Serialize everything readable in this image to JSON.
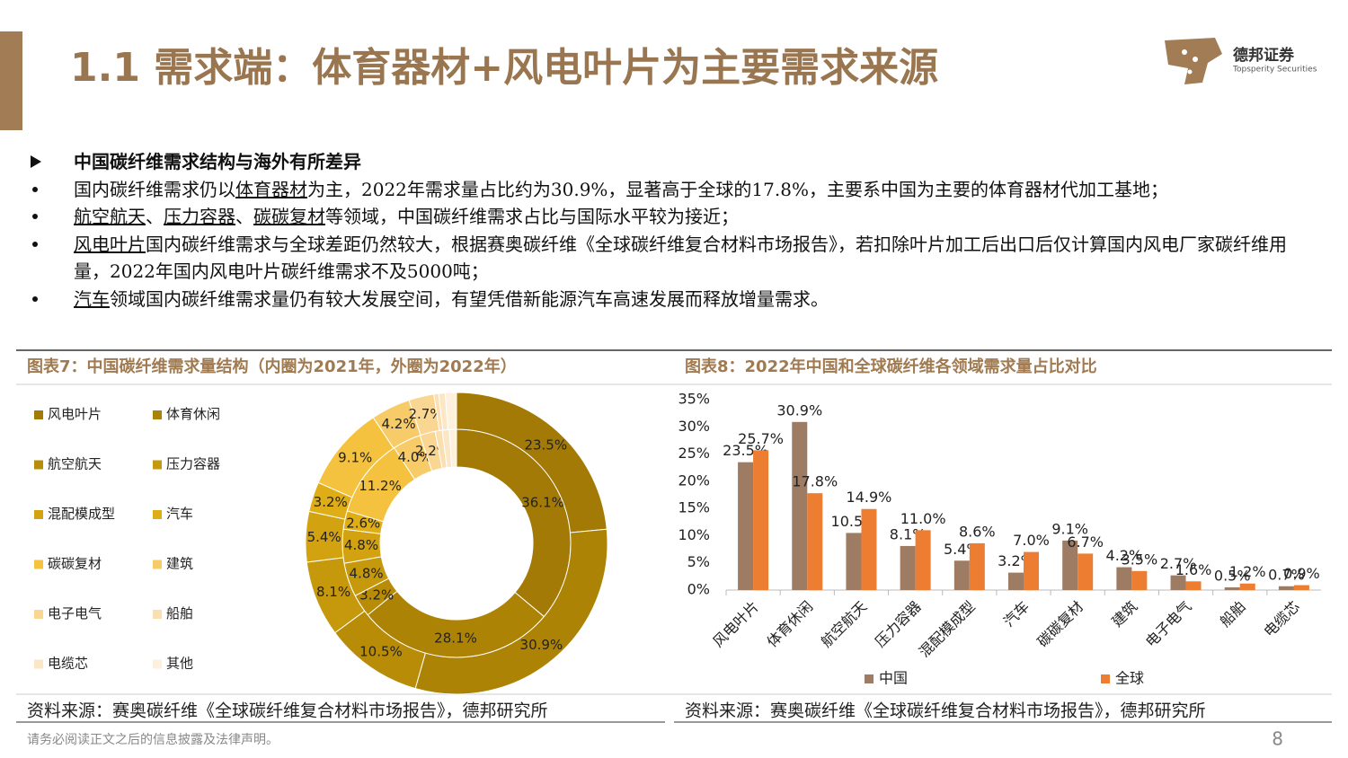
{
  "header": {
    "title": "1.1 需求端：体育器材+风电叶片为主要需求来源",
    "logo_name": "德邦证券",
    "logo_subtitle": "Topsperity Securities"
  },
  "section_heading": "中国碳纤维需求结构与海外有所差异",
  "bullets": [
    {
      "segments": [
        {
          "text": "国内碳纤维需求仍以"
        },
        {
          "text": "体育器材",
          "underline": true
        },
        {
          "text": "为主，2022年需求量占比约为30.9%，显著高于全球的17.8%，主要系中国为主要的体育器材代加工基地；"
        }
      ]
    },
    {
      "segments": [
        {
          "text": "航空航天",
          "underline": true
        },
        {
          "text": "、"
        },
        {
          "text": "压力容器",
          "underline": true
        },
        {
          "text": "、"
        },
        {
          "text": "碳碳复材",
          "underline": true
        },
        {
          "text": "等领域，中国碳纤维需求占比与国际水平较为接近；"
        }
      ]
    },
    {
      "segments": [
        {
          "text": "风电叶片",
          "underline": true
        },
        {
          "text": "国内碳纤维需求与全球差距仍然较大，根据赛奥碳纤维《全球碳纤维复合材料市场报告》，若扣除叶片加工后出口后仅计算国内风电厂家碳纤维用量，2022年国内风电叶片碳纤维需求不及5000吨；"
        }
      ]
    },
    {
      "segments": [
        {
          "text": "汽车",
          "underline": true
        },
        {
          "text": "领域国内碳纤维需求量仍有较大发展空间，有望凭借新能源汽车高速发展而释放增量需求。"
        }
      ]
    }
  ],
  "chart_data": [
    {
      "type": "donut",
      "title": "图表7：中国碳纤维需求量结构（内圈为2021年，外圈为2022年）",
      "categories": [
        "风电叶片",
        "体育休闲",
        "航空航天",
        "压力容器",
        "混配模成型",
        "汽车",
        "碳碳复材",
        "建筑",
        "电子电气",
        "船舶",
        "电缆芯",
        "其他"
      ],
      "colors": [
        "#a37a05",
        "#ad8306",
        "#b98c08",
        "#c6980b",
        "#d2a210",
        "#dfad16",
        "#f5c23f",
        "#f7cc68",
        "#f9d692",
        "#fadfb0",
        "#fbe7c6",
        "#fdf0dd"
      ],
      "series": [
        {
          "values": [
            36.1,
            28.1,
            3.2,
            4.8,
            4.8,
            2.6,
            11.2,
            4.0,
            2.2,
            1.0,
            1.0,
            1.0
          ],
          "value_labels": [
            "36.1%",
            "28.1%",
            "3.2%",
            "4.8%",
            "4.8%",
            "2.6%",
            "11.2%",
            "4.0%",
            "2.2%",
            null,
            null,
            null
          ]
        },
        {
          "values": [
            23.5,
            30.9,
            10.5,
            8.1,
            5.4,
            3.2,
            9.1,
            4.2,
            2.7,
            0.5,
            0.7,
            1.2
          ],
          "value_labels": [
            "23.5%",
            "30.9%",
            "10.5%",
            "8.1%",
            "5.4%",
            "3.2%",
            "9.1%",
            "4.2%",
            "2.7%",
            null,
            null,
            null
          ]
        }
      ],
      "source": "资料来源：赛奥碳纤维《全球碳纤维复合材料市场报告》，德邦研究所"
    },
    {
      "type": "bar",
      "title": "图表8：2022年中国和全球碳纤维各领域需求量占比对比",
      "categories": [
        "风电叶片",
        "体育休闲",
        "航空航天",
        "压力容器",
        "混配模成型",
        "汽车",
        "碳碳复材",
        "建筑",
        "电子电气",
        "船舶",
        "电缆芯"
      ],
      "series": [
        {
          "name": "中国",
          "color": "#9e7b63",
          "values": [
            23.5,
            30.9,
            10.5,
            8.1,
            5.4,
            3.2,
            9.1,
            4.2,
            2.7,
            0.5,
            0.7
          ],
          "value_labels": [
            "23.5%",
            "30.9%",
            "10.5%",
            "8.1%",
            "5.4%",
            "3.2%",
            "9.1%",
            "4.2%",
            "2.7%",
            "0.5%",
            "0.7%"
          ]
        },
        {
          "name": "全球",
          "color": "#ed7d31",
          "values": [
            25.7,
            17.8,
            14.9,
            11.0,
            8.6,
            7.0,
            6.7,
            3.5,
            1.6,
            1.2,
            0.9
          ],
          "value_labels": [
            "25.7%",
            "17.8%",
            "14.9%",
            "11.0%",
            "8.6%",
            "7.0%",
            "6.7%",
            "3.5%",
            "1.6%",
            "1.2%",
            "0.9%"
          ]
        }
      ],
      "ylim": [
        0,
        35
      ],
      "yticks": [
        {
          "value": 0,
          "label": "0%"
        },
        {
          "value": 5,
          "label": "5%"
        },
        {
          "value": 10,
          "label": "10%"
        },
        {
          "value": 15,
          "label": "15%"
        },
        {
          "value": 20,
          "label": "20%"
        },
        {
          "value": 25,
          "label": "25%"
        },
        {
          "value": 30,
          "label": "30%"
        },
        {
          "value": 35,
          "label": "35%"
        }
      ],
      "legend": "bottom",
      "source": "资料来源：赛奥碳纤维《全球碳纤维复合材料市场报告》，德邦研究所"
    }
  ],
  "footer": {
    "disclaimer": "请务必阅读正文之后的信息披露及法律声明。",
    "page": 8
  }
}
